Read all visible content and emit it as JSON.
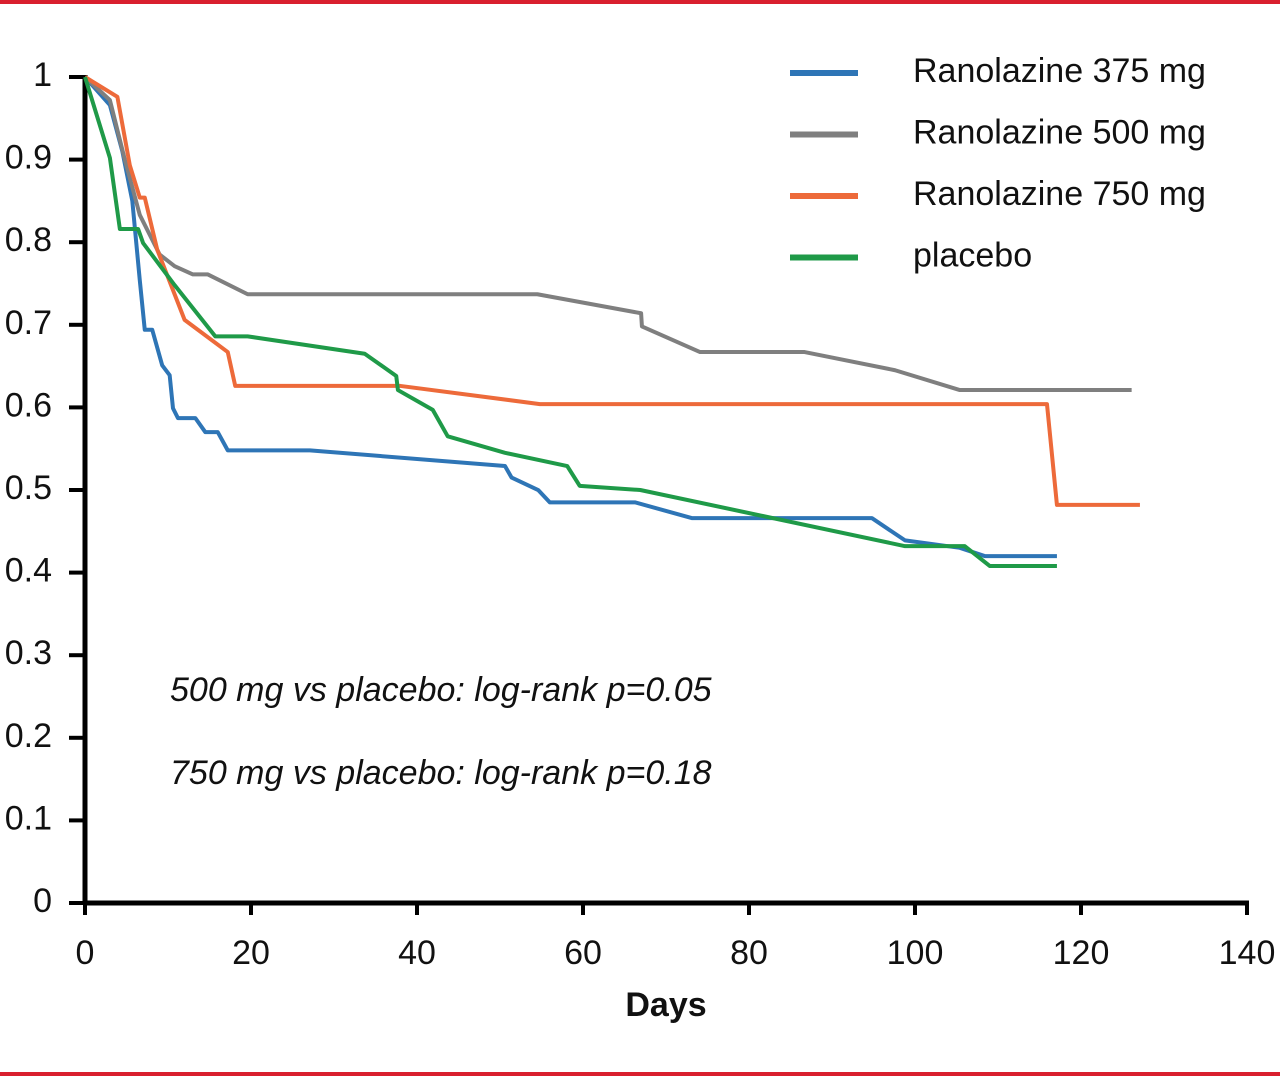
{
  "chart_data": {
    "type": "line",
    "x_label": "Days",
    "xlim": [
      0,
      140
    ],
    "xticks": [
      0,
      20,
      40,
      60,
      80,
      100,
      120,
      140
    ],
    "ylim": [
      0,
      1
    ],
    "yticks": [
      0,
      0.1,
      0.2,
      0.3,
      0.4,
      0.5,
      0.6,
      0.7,
      0.8,
      0.9,
      1
    ],
    "grid": false,
    "legend": "top-right",
    "annotations": [
      "500 mg vs placebo: log-rank p=0.05",
      "750 mg vs placebo: log-rank p=0.18"
    ],
    "series": [
      {
        "name": "Ranolazine 375 mg",
        "color": "#2e75b6",
        "x": [
          0,
          3,
          4.5,
          5.7,
          6.6,
          7.2,
          8.1,
          9.3,
          10.2,
          10.6,
          11.2,
          13.3,
          14.5,
          16,
          17.2,
          27.1,
          50.6,
          51.4,
          54.6,
          56,
          66.3,
          73.1,
          94.8,
          98.8,
          105.4,
          108.4,
          117.1
        ],
        "values": [
          1,
          0.966,
          0.91,
          0.85,
          0.754,
          0.694,
          0.694,
          0.651,
          0.639,
          0.599,
          0.587,
          0.587,
          0.57,
          0.57,
          0.548,
          0.548,
          0.529,
          0.515,
          0.5,
          0.485,
          0.485,
          0.466,
          0.466,
          0.439,
          0.43,
          0.42,
          0.42
        ]
      },
      {
        "name": "Ranolazine 500 mg",
        "color": "#7f7f7f",
        "x": [
          0,
          3,
          4.8,
          6.6,
          9,
          10.8,
          13,
          14.8,
          19.6,
          54.5,
          67,
          67.1,
          74.1,
          86.7,
          97.6,
          105.4,
          126.1
        ],
        "values": [
          1,
          0.972,
          0.9,
          0.833,
          0.785,
          0.771,
          0.761,
          0.761,
          0.737,
          0.737,
          0.714,
          0.698,
          0.667,
          0.667,
          0.645,
          0.621,
          0.621
        ]
      },
      {
        "name": "Ranolazine 750 mg",
        "color": "#ed6a3a",
        "x": [
          0,
          3.9,
          5.4,
          6.6,
          7.2,
          8.7,
          12,
          17.2,
          18.1,
          38,
          54.8,
          115.9,
          117.1,
          127.1
        ],
        "values": [
          1,
          0.976,
          0.893,
          0.854,
          0.854,
          0.791,
          0.706,
          0.667,
          0.626,
          0.626,
          0.604,
          0.604,
          0.482,
          0.482
        ]
      },
      {
        "name": "placebo",
        "color": "#1f9a48",
        "x": [
          0,
          3,
          4.2,
          6.4,
          7,
          10.8,
          15.7,
          19.6,
          33.7,
          37.5,
          37.7,
          41.9,
          43.7,
          50.6,
          58.1,
          59.6,
          66.9,
          98.8,
          106,
          109,
          117.1
        ],
        "values": [
          1,
          0.902,
          0.816,
          0.816,
          0.799,
          0.748,
          0.686,
          0.686,
          0.665,
          0.638,
          0.621,
          0.597,
          0.565,
          0.545,
          0.529,
          0.505,
          0.5,
          0.432,
          0.432,
          0.408,
          0.408
        ]
      }
    ]
  }
}
